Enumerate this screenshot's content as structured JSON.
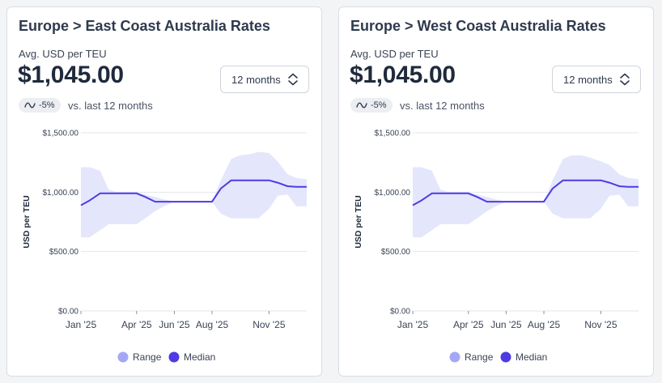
{
  "cards": [
    {
      "title": "Europe > East Coast Australia Rates",
      "metric_label": "Avg. USD per TEU",
      "metric_value": "$1,045.00",
      "period": "12 months",
      "change": {
        "icon": "trend-wave-icon",
        "value": "-5%",
        "compare_text": "vs. last 12 months"
      }
    },
    {
      "title": "Europe > West Coast Australia Rates",
      "metric_label": "Avg. USD per TEU",
      "metric_value": "$1,045.00",
      "period": "12 months",
      "change": {
        "icon": "trend-wave-icon",
        "value": "-5%",
        "compare_text": "vs. last 12 months"
      }
    }
  ],
  "chart_data": [
    {
      "type": "area",
      "title": "",
      "ylabel": "USD per TEU",
      "ylim": [
        0,
        1500
      ],
      "yticks": [
        0,
        500,
        1000,
        1500
      ],
      "ytick_labels": [
        "$0.00",
        "$500.00",
        "$1,000.00",
        "$1,500.00"
      ],
      "xtick_labels": [
        {
          "label": "Jan '25",
          "x": "2025-01-01"
        },
        {
          "label": "Apr '25",
          "x": "2025-04-01"
        },
        {
          "label": "Jun '25",
          "x": "2025-06-01"
        },
        {
          "label": "Aug '25",
          "x": "2025-08-01"
        },
        {
          "label": "Nov '25",
          "x": "2025-11-01"
        }
      ],
      "xlim": [
        "2025-01-01",
        "2026-01-01"
      ],
      "legend": [
        "Range",
        "Median"
      ],
      "legend_position": "bottom",
      "colors": {
        "range": "#e4e6fc",
        "median": "#4f3be3",
        "range_legend": "#a4a8f4",
        "grid": "#e3e6ea"
      },
      "series": [
        {
          "name": "Median",
          "x": [
            "2025-01-01",
            "2025-01-15",
            "2025-02-01",
            "2025-02-15",
            "2025-03-01",
            "2025-03-15",
            "2025-04-01",
            "2025-04-15",
            "2025-05-01",
            "2025-05-15",
            "2025-06-01",
            "2025-06-15",
            "2025-07-01",
            "2025-07-15",
            "2025-08-01",
            "2025-08-15",
            "2025-09-01",
            "2025-09-15",
            "2025-10-01",
            "2025-10-15",
            "2025-11-01",
            "2025-11-15",
            "2025-12-01",
            "2025-12-15",
            "2026-01-01"
          ],
          "values": [
            890,
            930,
            990,
            990,
            990,
            990,
            990,
            960,
            920,
            920,
            920,
            920,
            920,
            920,
            920,
            1030,
            1100,
            1100,
            1100,
            1100,
            1100,
            1080,
            1050,
            1045,
            1045
          ]
        },
        {
          "name": "Range",
          "x": [
            "2025-01-01",
            "2025-01-15",
            "2025-02-01",
            "2025-02-15",
            "2025-03-01",
            "2025-03-15",
            "2025-04-01",
            "2025-04-15",
            "2025-05-01",
            "2025-05-15",
            "2025-06-01",
            "2025-06-15",
            "2025-07-01",
            "2025-07-15",
            "2025-08-01",
            "2025-08-15",
            "2025-09-01",
            "2025-09-15",
            "2025-10-01",
            "2025-10-15",
            "2025-11-01",
            "2025-11-15",
            "2025-12-01",
            "2025-12-15",
            "2026-01-01"
          ],
          "low": [
            620,
            620,
            680,
            730,
            730,
            730,
            730,
            780,
            840,
            880,
            920,
            920,
            920,
            920,
            920,
            820,
            780,
            780,
            780,
            780,
            860,
            970,
            980,
            880,
            880
          ],
          "high": [
            1210,
            1210,
            1180,
            1020,
            1000,
            1000,
            1000,
            980,
            960,
            940,
            920,
            920,
            920,
            920,
            920,
            1100,
            1280,
            1310,
            1320,
            1340,
            1330,
            1260,
            1150,
            1120,
            1110
          ]
        }
      ]
    },
    {
      "type": "area",
      "title": "",
      "ylabel": "USD per TEU",
      "ylim": [
        0,
        1500
      ],
      "yticks": [
        0,
        500,
        1000,
        1500
      ],
      "ytick_labels": [
        "$0.00",
        "$500.00",
        "$1,000.00",
        "$1,500.00"
      ],
      "xtick_labels": [
        {
          "label": "Jan '25",
          "x": "2025-01-01"
        },
        {
          "label": "Apr '25",
          "x": "2025-04-01"
        },
        {
          "label": "Jun '25",
          "x": "2025-06-01"
        },
        {
          "label": "Aug '25",
          "x": "2025-08-01"
        },
        {
          "label": "Nov '25",
          "x": "2025-11-01"
        }
      ],
      "xlim": [
        "2025-01-01",
        "2026-01-01"
      ],
      "legend": [
        "Range",
        "Median"
      ],
      "legend_position": "bottom",
      "colors": {
        "range": "#e4e6fc",
        "median": "#4f3be3",
        "range_legend": "#a4a8f4",
        "grid": "#e3e6ea"
      },
      "series": [
        {
          "name": "Median",
          "x": [
            "2025-01-01",
            "2025-01-15",
            "2025-02-01",
            "2025-02-15",
            "2025-03-01",
            "2025-03-15",
            "2025-04-01",
            "2025-04-15",
            "2025-05-01",
            "2025-05-15",
            "2025-06-01",
            "2025-06-15",
            "2025-07-01",
            "2025-07-15",
            "2025-08-01",
            "2025-08-15",
            "2025-09-01",
            "2025-09-15",
            "2025-10-01",
            "2025-10-15",
            "2025-11-01",
            "2025-11-15",
            "2025-12-01",
            "2025-12-15",
            "2026-01-01"
          ],
          "values": [
            890,
            930,
            990,
            990,
            990,
            990,
            990,
            960,
            920,
            920,
            920,
            920,
            920,
            920,
            920,
            1030,
            1100,
            1100,
            1100,
            1100,
            1100,
            1080,
            1050,
            1045,
            1045
          ]
        },
        {
          "name": "Range",
          "x": [
            "2025-01-01",
            "2025-01-15",
            "2025-02-01",
            "2025-02-15",
            "2025-03-01",
            "2025-03-15",
            "2025-04-01",
            "2025-04-15",
            "2025-05-01",
            "2025-05-15",
            "2025-06-01",
            "2025-06-15",
            "2025-07-01",
            "2025-07-15",
            "2025-08-01",
            "2025-08-15",
            "2025-09-01",
            "2025-09-15",
            "2025-10-01",
            "2025-10-15",
            "2025-11-01",
            "2025-11-15",
            "2025-12-01",
            "2025-12-15",
            "2026-01-01"
          ],
          "low": [
            620,
            620,
            680,
            730,
            730,
            730,
            730,
            780,
            840,
            880,
            920,
            920,
            920,
            920,
            920,
            820,
            780,
            780,
            780,
            780,
            860,
            970,
            980,
            880,
            880
          ],
          "high": [
            1210,
            1210,
            1180,
            1020,
            1000,
            1000,
            1000,
            980,
            960,
            940,
            920,
            920,
            920,
            920,
            920,
            1100,
            1280,
            1310,
            1310,
            1290,
            1260,
            1230,
            1150,
            1120,
            1110
          ]
        }
      ]
    }
  ]
}
